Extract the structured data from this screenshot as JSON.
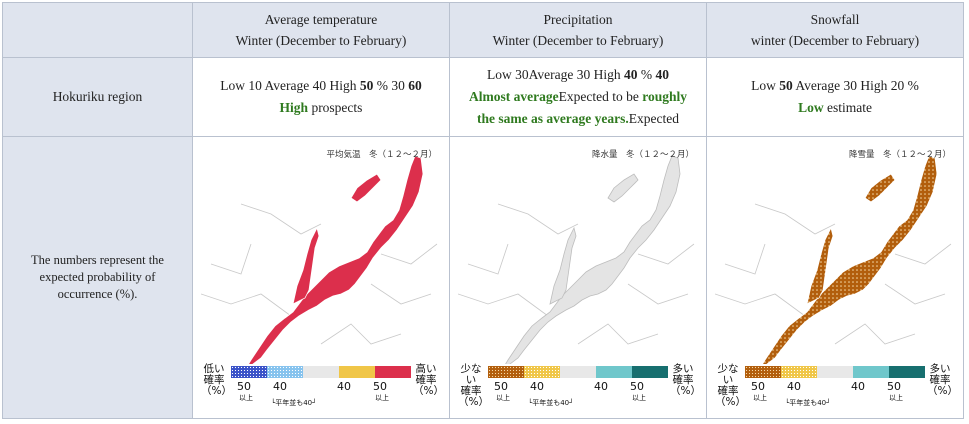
{
  "header": {
    "col1": [
      "Average temperature",
      "Winter (December to February)"
    ],
    "col2": [
      "Precipitation",
      "Winter (December to February)"
    ],
    "col3": [
      "Snowfall",
      "winter (December to February)"
    ]
  },
  "row1": {
    "label": "Hokuriku region",
    "temp": {
      "line1": [
        "Low 10 Average 40 High ",
        "50",
        " % 30 ",
        "60"
      ],
      "line2": [
        "High",
        " prospects"
      ]
    },
    "precip": {
      "line1": [
        "Low 30Average 30 High ",
        "40",
        " % ",
        "40"
      ],
      "line2": [
        "Almost average",
        "Expected to be ",
        "roughly"
      ],
      "line3": [
        "the same as average years.",
        "Expected"
      ]
    },
    "snow": {
      "line1": [
        "Low ",
        "50",
        " Average 30 High 20 %"
      ],
      "line2": [
        "Low",
        " estimate"
      ]
    }
  },
  "row2": {
    "label": "The numbers represent the expected probability of occurrence (%).",
    "maps": [
      {
        "title": "平均気温　冬（１２～２月）",
        "fill": "#dc2f4c",
        "pattern": "none",
        "left_label": "低い\n確率\n（%）",
        "right_label": "高い\n確率\n（%）",
        "bar_colors": [
          "#3a52c8",
          "#86c3ee",
          "#e8e8e8",
          "#f0c648",
          "#dc2f4c"
        ],
        "ticks": [
          "50",
          "40",
          "40",
          "50"
        ],
        "ijo": "以上",
        "note": "└平年並も40┘"
      },
      {
        "title": "降水量　冬（１２～２月）",
        "fill": "#e4e4e4",
        "pattern": "none",
        "left_label": "少ない\n確率\n（%）",
        "right_label": "多い\n確率\n（%）",
        "bar_colors": [
          "#b25e0c",
          "#f0c648",
          "#e8e8e8",
          "#6fc7cb",
          "#176f6f"
        ],
        "ticks": [
          "50",
          "40",
          "40",
          "50"
        ],
        "ijo": "以上",
        "note": "└平年並も40┘"
      },
      {
        "title": "降雪量　冬（１２～２月）",
        "fill": "#b25e0c",
        "pattern": "dots",
        "left_label": "少ない\n確率\n（%）",
        "right_label": "多い\n確率\n（%）",
        "bar_colors": [
          "#b25e0c",
          "#f0c648",
          "#e8e8e8",
          "#6fc7cb",
          "#176f6f"
        ],
        "ticks": [
          "50",
          "40",
          "40",
          "50"
        ],
        "ijo": "以上",
        "note": "└平年並も40┘"
      }
    ]
  }
}
